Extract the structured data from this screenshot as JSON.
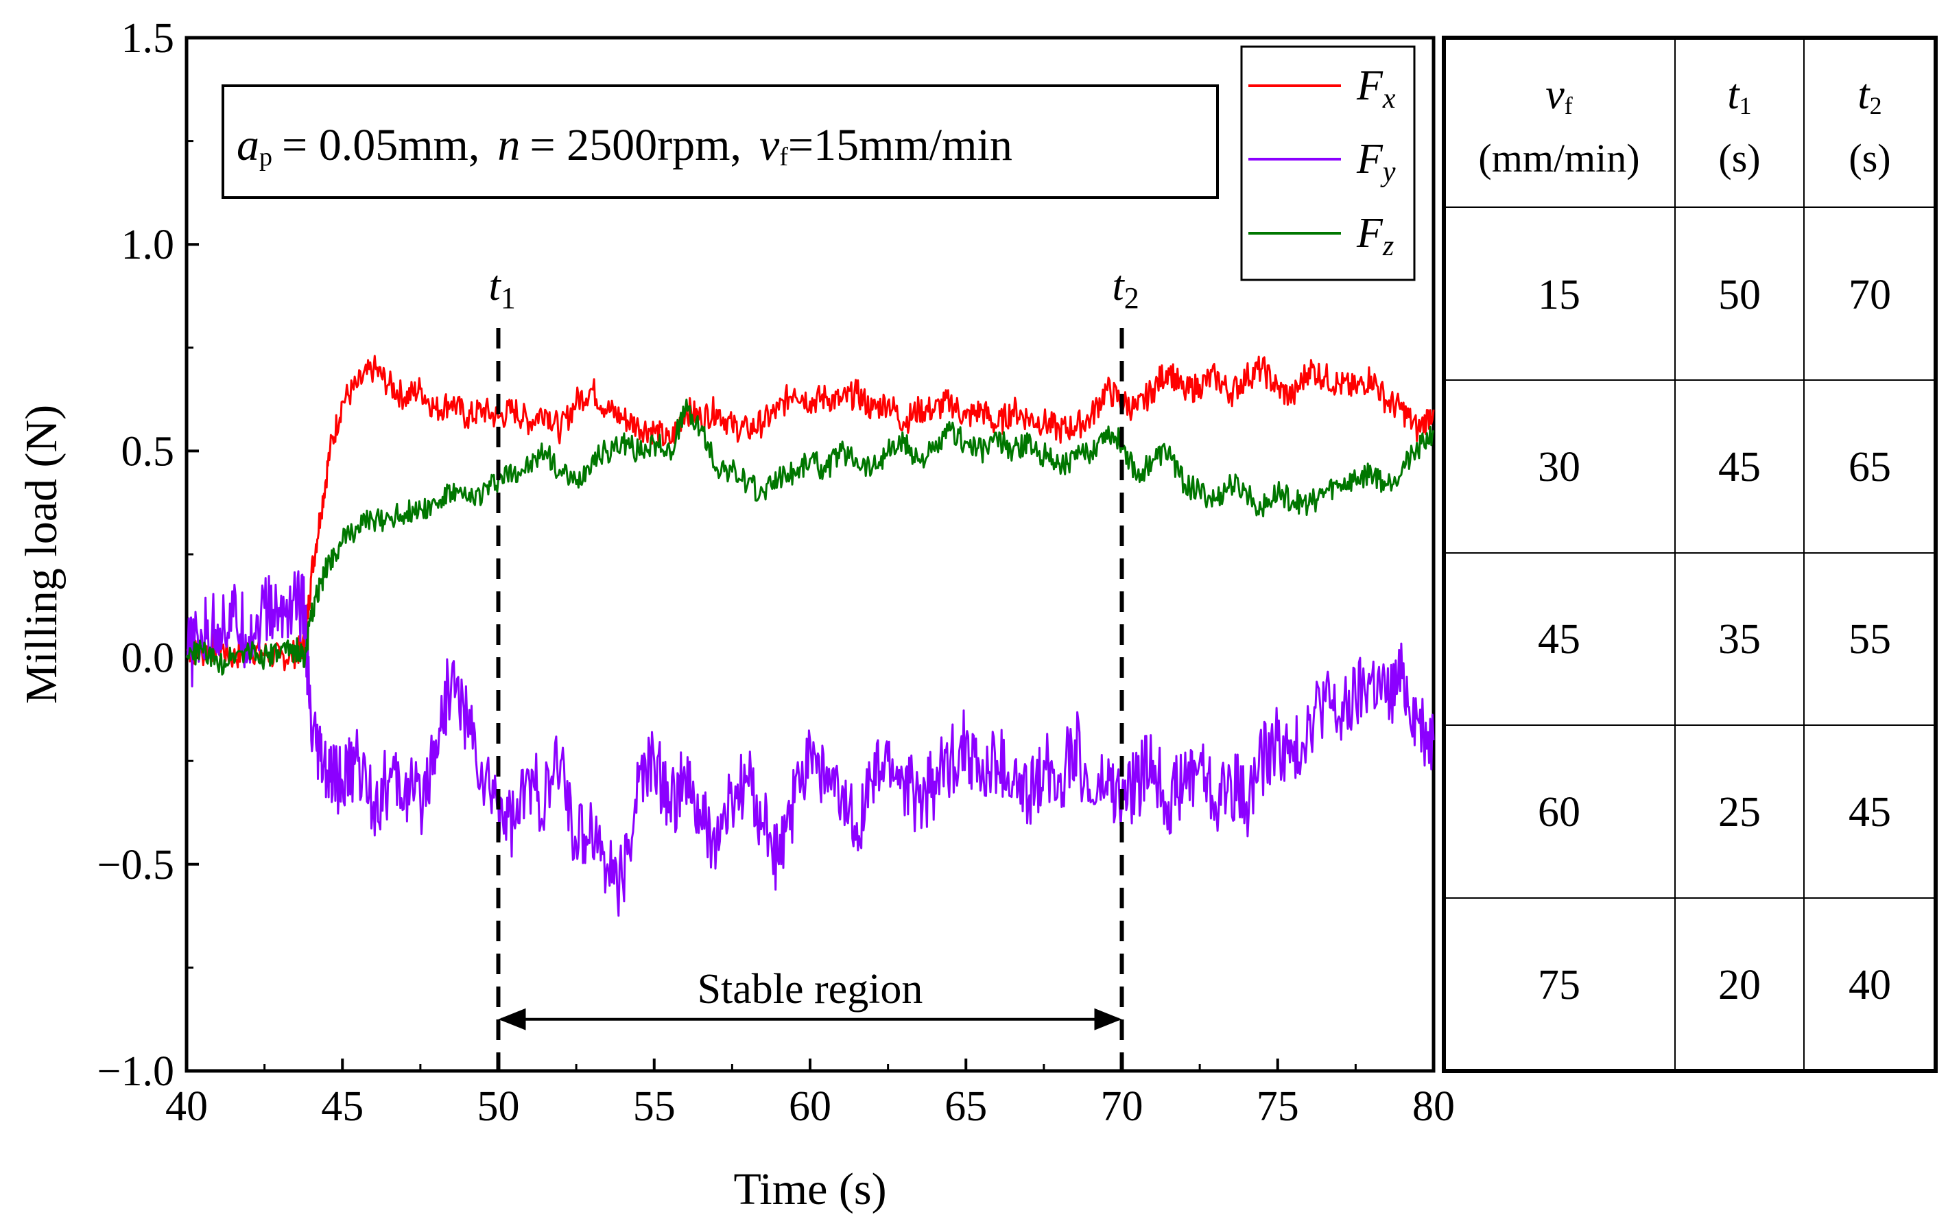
{
  "chart_data": {
    "type": "line",
    "title": "",
    "xlabel": "Time (s)",
    "ylabel": "Milling load  (N)",
    "xlim": [
      40,
      80
    ],
    "ylim": [
      -1.0,
      1.5
    ],
    "x_ticks": [
      40,
      45,
      50,
      55,
      60,
      65,
      70,
      75,
      80
    ],
    "x_tick_labels": [
      "40",
      "45",
      "50",
      "55",
      "60",
      "65",
      "70",
      "75",
      "80"
    ],
    "y_ticks": [
      -1.0,
      -0.5,
      0.0,
      0.5,
      1.0,
      1.5
    ],
    "y_tick_labels": [
      "−1.0",
      "−0.5",
      "0.0",
      "0.5",
      "1.0",
      "1.5"
    ],
    "grid": false,
    "legend_position": "top-right",
    "series": [
      {
        "name": "F_x",
        "label_main": "F",
        "label_sub": "x",
        "color": "#ff0000",
        "x": [
          40,
          40.5,
          41,
          41.5,
          42,
          42.5,
          43,
          43.5,
          43.8,
          44,
          44.3,
          44.6,
          45,
          45.5,
          46,
          46.5,
          47,
          47.5,
          48,
          48.5,
          49,
          49.5,
          50,
          50.5,
          51,
          51.5,
          52,
          52.5,
          53,
          53.5,
          54,
          54.5,
          55,
          55.5,
          56,
          56.5,
          57,
          57.5,
          58,
          58.5,
          59,
          59.5,
          60,
          60.5,
          61,
          61.5,
          62,
          62.5,
          63,
          63.5,
          64,
          64.5,
          65,
          65.5,
          66,
          66.5,
          67,
          67.5,
          68,
          68.5,
          69,
          69.5,
          70,
          70.5,
          71,
          71.5,
          72,
          72.5,
          73,
          73.5,
          74,
          74.5,
          75,
          75.5,
          76,
          76.5,
          77,
          77.5,
          78,
          78.5,
          79,
          79.5,
          80
        ],
        "values": [
          0.02,
          0.01,
          0.03,
          0.0,
          0.02,
          0.01,
          0.0,
          0.01,
          0.03,
          0.2,
          0.35,
          0.5,
          0.62,
          0.66,
          0.7,
          0.66,
          0.63,
          0.65,
          0.6,
          0.62,
          0.58,
          0.6,
          0.58,
          0.6,
          0.57,
          0.6,
          0.55,
          0.62,
          0.65,
          0.6,
          0.58,
          0.56,
          0.55,
          0.52,
          0.6,
          0.58,
          0.6,
          0.56,
          0.55,
          0.57,
          0.6,
          0.65,
          0.62,
          0.63,
          0.62,
          0.64,
          0.6,
          0.62,
          0.57,
          0.6,
          0.6,
          0.62,
          0.58,
          0.6,
          0.56,
          0.6,
          0.58,
          0.57,
          0.55,
          0.56,
          0.58,
          0.65,
          0.62,
          0.6,
          0.65,
          0.7,
          0.64,
          0.66,
          0.68,
          0.64,
          0.68,
          0.7,
          0.65,
          0.63,
          0.7,
          0.68,
          0.66,
          0.65,
          0.68,
          0.62,
          0.6,
          0.55,
          0.6
        ]
      },
      {
        "name": "F_y",
        "label_main": "F",
        "label_sub": "y",
        "color": "#8b00ff",
        "x": [
          40,
          40.5,
          41,
          41.5,
          42,
          42.5,
          43,
          43.5,
          43.8,
          44,
          44.3,
          44.6,
          45,
          45.5,
          46,
          46.5,
          47,
          47.5,
          48,
          48.5,
          49,
          49.5,
          50,
          50.5,
          51,
          51.5,
          52,
          52.5,
          53,
          53.5,
          54,
          54.5,
          55,
          55.5,
          56,
          56.5,
          57,
          57.5,
          58,
          58.5,
          59,
          59.5,
          60,
          60.5,
          61,
          61.5,
          62,
          62.5,
          63,
          63.5,
          64,
          64.5,
          65,
          65.5,
          66,
          66.5,
          67,
          67.5,
          68,
          68.5,
          69,
          69.5,
          70,
          70.5,
          71,
          71.5,
          72,
          72.5,
          73,
          73.5,
          74,
          74.5,
          75,
          75.5,
          76,
          76.5,
          77,
          77.5,
          78,
          78.5,
          79,
          79.5,
          80
        ],
        "values": [
          0.0,
          0.05,
          0.08,
          0.1,
          0.05,
          0.12,
          0.1,
          0.15,
          0.1,
          -0.2,
          -0.25,
          -0.3,
          -0.3,
          -0.25,
          -0.35,
          -0.3,
          -0.32,
          -0.35,
          -0.2,
          -0.05,
          -0.15,
          -0.3,
          -0.35,
          -0.4,
          -0.3,
          -0.35,
          -0.25,
          -0.45,
          -0.4,
          -0.5,
          -0.55,
          -0.3,
          -0.25,
          -0.35,
          -0.3,
          -0.4,
          -0.45,
          -0.35,
          -0.3,
          -0.4,
          -0.5,
          -0.35,
          -0.2,
          -0.3,
          -0.35,
          -0.4,
          -0.3,
          -0.25,
          -0.3,
          -0.35,
          -0.3,
          -0.25,
          -0.2,
          -0.3,
          -0.25,
          -0.3,
          -0.35,
          -0.25,
          -0.3,
          -0.2,
          -0.35,
          -0.3,
          -0.35,
          -0.3,
          -0.25,
          -0.35,
          -0.3,
          -0.25,
          -0.35,
          -0.3,
          -0.35,
          -0.25,
          -0.2,
          -0.25,
          -0.15,
          -0.1,
          -0.15,
          -0.1,
          -0.05,
          -0.1,
          -0.05,
          -0.15,
          -0.2
        ]
      },
      {
        "name": "F_z",
        "label_main": "F",
        "label_sub": "z",
        "color": "#007700",
        "x": [
          40,
          40.5,
          41,
          41.5,
          42,
          42.5,
          43,
          43.5,
          43.8,
          44,
          44.3,
          44.6,
          45,
          45.5,
          46,
          46.5,
          47,
          47.5,
          48,
          48.5,
          49,
          49.5,
          50,
          50.5,
          51,
          51.5,
          52,
          52.5,
          53,
          53.5,
          54,
          54.5,
          55,
          55.5,
          56,
          56.5,
          57,
          57.5,
          58,
          58.5,
          59,
          59.5,
          60,
          60.5,
          61,
          61.5,
          62,
          62.5,
          63,
          63.5,
          64,
          64.5,
          65,
          65.5,
          66,
          66.5,
          67,
          67.5,
          68,
          68.5,
          69,
          69.5,
          70,
          70.5,
          71,
          71.5,
          72,
          72.5,
          73,
          73.5,
          74,
          74.5,
          75,
          75.5,
          76,
          76.5,
          77,
          77.5,
          78,
          78.5,
          79,
          79.5,
          80
        ],
        "values": [
          0.0,
          0.02,
          -0.02,
          0.01,
          0.02,
          0.0,
          0.01,
          0.02,
          0.0,
          0.1,
          0.18,
          0.24,
          0.28,
          0.32,
          0.33,
          0.34,
          0.35,
          0.36,
          0.37,
          0.4,
          0.38,
          0.4,
          0.43,
          0.45,
          0.46,
          0.5,
          0.45,
          0.42,
          0.48,
          0.5,
          0.52,
          0.5,
          0.52,
          0.5,
          0.6,
          0.55,
          0.46,
          0.45,
          0.42,
          0.4,
          0.44,
          0.45,
          0.48,
          0.45,
          0.5,
          0.48,
          0.46,
          0.5,
          0.52,
          0.48,
          0.5,
          0.55,
          0.52,
          0.5,
          0.53,
          0.5,
          0.52,
          0.49,
          0.47,
          0.48,
          0.5,
          0.55,
          0.52,
          0.44,
          0.48,
          0.5,
          0.42,
          0.4,
          0.38,
          0.42,
          0.4,
          0.36,
          0.4,
          0.38,
          0.37,
          0.4,
          0.42,
          0.43,
          0.45,
          0.42,
          0.46,
          0.5,
          0.55
        ]
      }
    ],
    "annotations": {
      "t1": {
        "label_main": "t",
        "label_sub": "1",
        "x": 50
      },
      "t2": {
        "label_main": "t",
        "label_sub": "2",
        "x": 70
      },
      "stable_region": {
        "label": "Stable region",
        "y": -0.875,
        "x_from": 50,
        "x_to": 70
      },
      "conditions": {
        "ap_var": "a",
        "ap_sub": "p",
        "ap_value": "= 0.05mm,",
        "n_var": "n",
        "n_value": "= 2500rpm,",
        "vf_var": "v",
        "vf_sub": "f",
        "vf_value": "=15mm/min"
      }
    }
  },
  "table": {
    "headers": [
      {
        "main": "v",
        "sub": "f",
        "unit": "(mm/min)"
      },
      {
        "main": "t",
        "sub": "1",
        "unit": "(s)"
      },
      {
        "main": "t",
        "sub": "2",
        "unit": "(s)"
      }
    ],
    "rows": [
      [
        "15",
        "50",
        "70"
      ],
      [
        "30",
        "45",
        "65"
      ],
      [
        "45",
        "35",
        "55"
      ],
      [
        "60",
        "25",
        "45"
      ],
      [
        "75",
        "20",
        "40"
      ]
    ]
  }
}
